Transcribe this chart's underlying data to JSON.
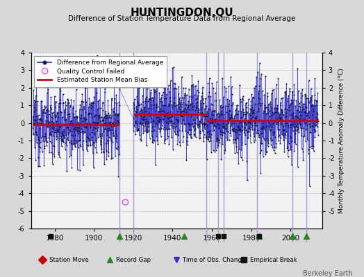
{
  "title": "HUNTINGDON,QU",
  "subtitle": "Difference of Station Temperature Data from Regional Average",
  "ylabel_right": "Monthly Temperature Anomaly Difference (°C)",
  "ylim": [
    -6,
    4
  ],
  "xlim": [
    1868,
    2016
  ],
  "xticks": [
    1880,
    1900,
    1920,
    1940,
    1960,
    1980,
    2000
  ],
  "yticks_left": [
    4,
    3,
    2,
    1,
    0,
    -1,
    -2,
    -3,
    -4,
    -5,
    -6
  ],
  "yticks_right": [
    4,
    3,
    2,
    1,
    0,
    -1,
    -2,
    -3,
    -4,
    -5
  ],
  "bg_color": "#d8d8d8",
  "plot_bg_color": "#f2f2f2",
  "line_color": "#2222cc",
  "dot_color": "#111111",
  "bias_color": "#dd0000",
  "qc_color": "#ee44ee",
  "record_gap_color": "#228822",
  "emp_break_color": "#111111",
  "tobs_color": "#3333cc",
  "station_move_color": "#cc0000",
  "vertical_line_color": "#9999cc",
  "segment_biases": [
    {
      "start": 1869,
      "end": 1913,
      "bias": -0.1
    },
    {
      "start": 1920,
      "end": 1957,
      "bias": 0.5
    },
    {
      "start": 1957,
      "end": 2014,
      "bias": 0.15
    }
  ],
  "vertical_lines": [
    1913,
    1920,
    1957,
    1963,
    1966,
    1983,
    2001,
    2008
  ],
  "record_gaps": [
    1913,
    1946,
    1984,
    2001,
    2008
  ],
  "empirical_breaks": [
    1878,
    1963,
    1966,
    1984
  ],
  "qc_failed_x": [
    1916
  ],
  "qc_failed_y": [
    -4.5
  ],
  "station_moves": [],
  "tobs_changes": [],
  "segments_data": [
    {
      "start": 1869,
      "end": 1913,
      "bias": -0.1,
      "spread": 1.0
    },
    {
      "start": 1920,
      "end": 1957,
      "bias": 0.5,
      "spread": 1.0
    },
    {
      "start": 1957,
      "end": 2014,
      "bias": 0.15,
      "spread": 1.0
    }
  ]
}
